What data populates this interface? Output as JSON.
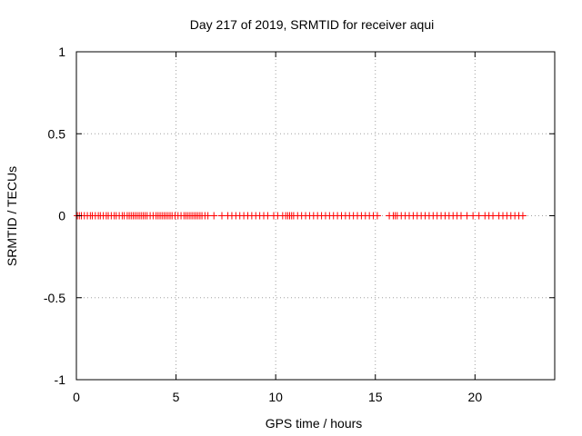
{
  "chart_data": {
    "type": "scatter",
    "title": "Day 217 of 2019, SRMTID for receiver aqui",
    "xlabel": "GPS time / hours",
    "ylabel": "SRMTID / TECUs",
    "xlim": [
      0,
      24
    ],
    "ylim": [
      -1,
      1
    ],
    "xticks": [
      0,
      5,
      10,
      15,
      20
    ],
    "yticks": [
      -1,
      -0.5,
      0,
      0.5,
      1
    ],
    "xtick_labels": [
      "0",
      "5",
      "10",
      "15",
      "20"
    ],
    "ytick_labels": [
      "-1",
      "-0.5",
      "0",
      "0.5",
      "1"
    ],
    "grid": true,
    "marker": "plus",
    "marker_color": "#ff0000",
    "series": [
      {
        "name": "SRMTID",
        "points": [
          [
            0.05,
            0
          ],
          [
            0.15,
            0
          ],
          [
            0.25,
            0
          ],
          [
            0.4,
            0
          ],
          [
            0.55,
            0
          ],
          [
            0.7,
            0
          ],
          [
            0.8,
            0
          ],
          [
            0.95,
            0
          ],
          [
            1.1,
            0
          ],
          [
            1.2,
            0
          ],
          [
            1.35,
            0
          ],
          [
            1.5,
            0
          ],
          [
            1.6,
            0
          ],
          [
            1.75,
            0
          ],
          [
            1.9,
            0
          ],
          [
            2.0,
            0
          ],
          [
            2.15,
            0
          ],
          [
            2.3,
            0
          ],
          [
            2.4,
            0
          ],
          [
            2.55,
            0
          ],
          [
            2.65,
            0
          ],
          [
            2.75,
            0
          ],
          [
            2.85,
            0
          ],
          [
            2.95,
            0
          ],
          [
            3.05,
            0
          ],
          [
            3.15,
            0
          ],
          [
            3.25,
            0
          ],
          [
            3.35,
            0
          ],
          [
            3.45,
            0
          ],
          [
            3.55,
            0
          ],
          [
            3.7,
            0
          ],
          [
            3.85,
            0
          ],
          [
            4.0,
            0
          ],
          [
            4.1,
            0
          ],
          [
            4.2,
            0
          ],
          [
            4.3,
            0
          ],
          [
            4.4,
            0
          ],
          [
            4.5,
            0
          ],
          [
            4.6,
            0
          ],
          [
            4.7,
            0
          ],
          [
            4.8,
            0
          ],
          [
            4.95,
            0
          ],
          [
            5.1,
            0
          ],
          [
            5.25,
            0
          ],
          [
            5.4,
            0
          ],
          [
            5.5,
            0
          ],
          [
            5.6,
            0
          ],
          [
            5.7,
            0
          ],
          [
            5.8,
            0
          ],
          [
            5.9,
            0
          ],
          [
            6.0,
            0
          ],
          [
            6.1,
            0
          ],
          [
            6.2,
            0
          ],
          [
            6.3,
            0
          ],
          [
            6.45,
            0
          ],
          [
            6.6,
            0
          ],
          [
            6.9,
            0
          ],
          [
            7.3,
            0
          ],
          [
            7.6,
            0
          ],
          [
            7.8,
            0
          ],
          [
            8.0,
            0
          ],
          [
            8.2,
            0
          ],
          [
            8.4,
            0
          ],
          [
            8.6,
            0
          ],
          [
            8.8,
            0
          ],
          [
            9.0,
            0
          ],
          [
            9.2,
            0
          ],
          [
            9.4,
            0
          ],
          [
            9.6,
            0
          ],
          [
            9.9,
            0
          ],
          [
            10.1,
            0
          ],
          [
            10.35,
            0
          ],
          [
            10.5,
            0
          ],
          [
            10.6,
            0
          ],
          [
            10.7,
            0
          ],
          [
            10.8,
            0
          ],
          [
            10.9,
            0
          ],
          [
            11.1,
            0
          ],
          [
            11.3,
            0
          ],
          [
            11.5,
            0
          ],
          [
            11.7,
            0
          ],
          [
            11.9,
            0
          ],
          [
            12.1,
            0
          ],
          [
            12.3,
            0
          ],
          [
            12.5,
            0
          ],
          [
            12.7,
            0
          ],
          [
            12.9,
            0
          ],
          [
            13.1,
            0
          ],
          [
            13.3,
            0
          ],
          [
            13.5,
            0
          ],
          [
            13.7,
            0
          ],
          [
            13.9,
            0
          ],
          [
            14.1,
            0
          ],
          [
            14.3,
            0
          ],
          [
            14.5,
            0
          ],
          [
            14.7,
            0
          ],
          [
            14.9,
            0
          ],
          [
            15.1,
            0
          ],
          [
            15.7,
            0
          ],
          [
            15.9,
            0
          ],
          [
            16.0,
            0
          ],
          [
            16.1,
            0
          ],
          [
            16.3,
            0
          ],
          [
            16.5,
            0
          ],
          [
            16.7,
            0
          ],
          [
            16.9,
            0
          ],
          [
            17.1,
            0
          ],
          [
            17.3,
            0
          ],
          [
            17.5,
            0
          ],
          [
            17.7,
            0
          ],
          [
            17.9,
            0
          ],
          [
            18.1,
            0
          ],
          [
            18.3,
            0
          ],
          [
            18.5,
            0
          ],
          [
            18.7,
            0
          ],
          [
            18.9,
            0
          ],
          [
            19.1,
            0
          ],
          [
            19.3,
            0
          ],
          [
            19.6,
            0
          ],
          [
            19.9,
            0
          ],
          [
            20.2,
            0
          ],
          [
            20.5,
            0
          ],
          [
            20.7,
            0
          ],
          [
            20.9,
            0
          ],
          [
            21.2,
            0
          ],
          [
            21.4,
            0
          ],
          [
            21.6,
            0
          ],
          [
            21.8,
            0
          ],
          [
            22.0,
            0
          ],
          [
            22.2,
            0
          ],
          [
            22.4,
            0
          ]
        ]
      }
    ]
  }
}
